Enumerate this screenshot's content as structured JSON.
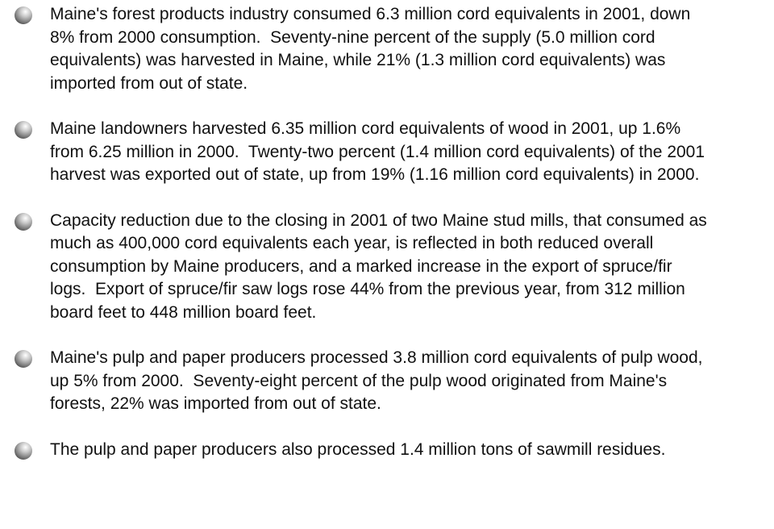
{
  "items": [
    "Maine's forest products industry consumed 6.3 million cord equivalents in 2001, down 8% from 2000 consumption.  Seventy-nine percent of the supply (5.0 million cord equivalents) was harvested in Maine, while 21% (1.3 million cord equivalents) was imported from out of state.",
    "Maine landowners harvested 6.35 million cord equivalents of wood in 2001, up 1.6% from 6.25 million in 2000.  Twenty-two percent (1.4 million cord equivalents) of the 2001 harvest was exported out of state, up from 19% (1.16 million cord equivalents) in 2000.",
    "Capacity reduction due to the closing in 2001 of two Maine stud mills, that consumed as much as 400,000 cord equivalents each year, is reflected in both reduced overall consumption by Maine producers, and a marked increase in the export of spruce/fir logs.  Export of spruce/fir saw logs rose 44% from the previous year, from 312 million board feet to 448 million board feet.",
    "Maine's pulp and paper producers processed 3.8 million cord equivalents of pulp wood, up 5% from 2000.  Seventy-eight percent of the pulp wood originated from Maine's forests, 22% was imported from out of state.",
    "The pulp and paper producers also processed 1.4 million tons of sawmill residues."
  ]
}
